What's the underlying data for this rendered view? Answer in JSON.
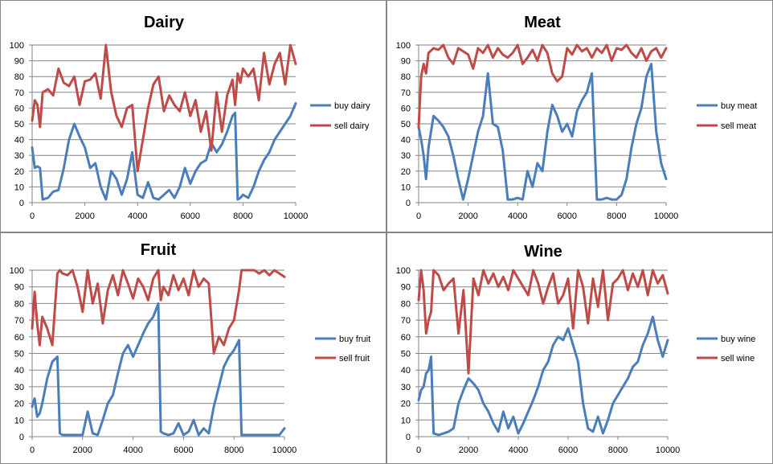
{
  "chart_data": [
    {
      "type": "line",
      "title": "Dairy",
      "xlim": [
        0,
        10000
      ],
      "ylim": [
        0,
        100
      ],
      "xticks": [
        "0",
        "2000",
        "4000",
        "6000",
        "8000",
        "10000"
      ],
      "yticks": [
        "0",
        "10",
        "20",
        "30",
        "40",
        "50",
        "60",
        "70",
        "80",
        "90",
        "100"
      ],
      "grid": true,
      "legend": "right",
      "x": [
        0,
        100,
        200,
        300,
        400,
        600,
        800,
        1000,
        1200,
        1400,
        1600,
        1800,
        2000,
        2200,
        2400,
        2600,
        2800,
        3000,
        3200,
        3400,
        3600,
        3800,
        4000,
        4200,
        4400,
        4600,
        4800,
        5000,
        5200,
        5400,
        5600,
        5800,
        6000,
        6200,
        6400,
        6600,
        6800,
        7000,
        7200,
        7400,
        7600,
        7700,
        7800,
        7900,
        8000,
        8200,
        8400,
        8600,
        8800,
        9000,
        9200,
        9400,
        9600,
        9800,
        10000
      ],
      "series": [
        {
          "name": "buy dairy",
          "color": "#4a7ebb",
          "values": [
            35,
            22,
            23,
            22,
            2,
            3,
            7,
            8,
            22,
            40,
            50,
            42,
            35,
            22,
            25,
            10,
            2,
            20,
            15,
            5,
            15,
            32,
            5,
            3,
            13,
            3,
            2,
            5,
            8,
            3,
            10,
            22,
            12,
            20,
            25,
            27,
            38,
            32,
            37,
            45,
            55,
            57,
            2,
            3,
            5,
            3,
            10,
            20,
            27,
            32,
            40,
            45,
            50,
            55,
            63
          ]
        },
        {
          "name": "sell dairy",
          "color": "#be4b48",
          "values": [
            52,
            65,
            62,
            48,
            70,
            72,
            68,
            85,
            76,
            74,
            80,
            62,
            77,
            78,
            82,
            66,
            100,
            70,
            55,
            48,
            60,
            62,
            20,
            40,
            60,
            75,
            80,
            58,
            68,
            62,
            58,
            70,
            55,
            65,
            45,
            58,
            33,
            70,
            45,
            68,
            78,
            62,
            82,
            76,
            85,
            80,
            85,
            65,
            95,
            75,
            88,
            95,
            75,
            100,
            88
          ]
        }
      ]
    },
    {
      "type": "line",
      "title": "Meat",
      "xlim": [
        0,
        10000
      ],
      "ylim": [
        0,
        100
      ],
      "xticks": [
        "0",
        "2000",
        "4000",
        "6000",
        "8000",
        "10000"
      ],
      "yticks": [
        "0",
        "10",
        "20",
        "30",
        "40",
        "50",
        "60",
        "70",
        "80",
        "90",
        "100"
      ],
      "grid": true,
      "legend": "right",
      "x": [
        0,
        100,
        200,
        300,
        400,
        600,
        800,
        1000,
        1200,
        1400,
        1600,
        1800,
        2000,
        2200,
        2400,
        2600,
        2800,
        3000,
        3200,
        3400,
        3600,
        3800,
        4000,
        4200,
        4400,
        4600,
        4800,
        5000,
        5200,
        5400,
        5600,
        5800,
        6000,
        6200,
        6400,
        6600,
        6800,
        7000,
        7200,
        7400,
        7600,
        7800,
        8000,
        8200,
        8400,
        8600,
        8800,
        9000,
        9200,
        9400,
        9600,
        9800,
        10000
      ],
      "series": [
        {
          "name": "buy meat",
          "color": "#4a7ebb",
          "values": [
            48,
            40,
            30,
            15,
            35,
            55,
            52,
            48,
            42,
            30,
            15,
            2,
            15,
            30,
            45,
            55,
            82,
            50,
            48,
            33,
            2,
            2,
            3,
            2,
            20,
            10,
            25,
            20,
            45,
            62,
            55,
            45,
            50,
            42,
            58,
            65,
            70,
            82,
            2,
            2,
            3,
            2,
            2,
            5,
            15,
            35,
            50,
            60,
            80,
            88,
            45,
            25,
            15
          ]
        },
        {
          "name": "sell meat",
          "color": "#be4b48",
          "values": [
            48,
            80,
            88,
            82,
            95,
            98,
            97,
            100,
            92,
            88,
            98,
            96,
            94,
            85,
            98,
            95,
            100,
            92,
            98,
            94,
            92,
            95,
            100,
            88,
            92,
            97,
            90,
            100,
            95,
            82,
            77,
            80,
            98,
            94,
            100,
            96,
            98,
            92,
            98,
            95,
            100,
            90,
            98,
            97,
            100,
            95,
            92,
            98,
            90,
            96,
            98,
            92,
            98
          ]
        }
      ]
    },
    {
      "type": "line",
      "title": "Fruit",
      "xlim": [
        0,
        10000
      ],
      "ylim": [
        0,
        100
      ],
      "xticks": [
        "0",
        "2000",
        "4000",
        "6000",
        "8000",
        "10000"
      ],
      "yticks": [
        "0",
        "10",
        "20",
        "30",
        "40",
        "50",
        "60",
        "70",
        "80",
        "90",
        "100"
      ],
      "grid": true,
      "legend": "right",
      "x": [
        0,
        100,
        200,
        300,
        400,
        600,
        800,
        1000,
        1100,
        1200,
        1400,
        1600,
        1800,
        2000,
        2200,
        2400,
        2600,
        2800,
        3000,
        3200,
        3400,
        3600,
        3800,
        4000,
        4200,
        4400,
        4600,
        4800,
        5000,
        5100,
        5200,
        5400,
        5600,
        5800,
        6000,
        6200,
        6400,
        6600,
        6800,
        7000,
        7200,
        7400,
        7600,
        7800,
        8000,
        8200,
        8300,
        8400,
        8600,
        8800,
        9000,
        9200,
        9400,
        9600,
        9800,
        10000
      ],
      "series": [
        {
          "name": "buy fruit",
          "color": "#4a7ebb",
          "values": [
            18,
            23,
            12,
            14,
            20,
            35,
            45,
            48,
            2,
            1,
            1,
            1,
            1,
            1,
            15,
            2,
            1,
            10,
            20,
            25,
            38,
            50,
            55,
            48,
            55,
            62,
            68,
            72,
            80,
            3,
            2,
            1,
            2,
            8,
            1,
            3,
            10,
            1,
            5,
            2,
            18,
            30,
            42,
            48,
            52,
            58,
            1,
            1,
            1,
            1,
            1,
            1,
            1,
            1,
            1,
            5
          ]
        },
        {
          "name": "sell fruit",
          "color": "#be4b48",
          "values": [
            65,
            87,
            68,
            55,
            72,
            65,
            55,
            98,
            100,
            98,
            97,
            100,
            90,
            75,
            100,
            80,
            92,
            68,
            88,
            97,
            85,
            100,
            92,
            83,
            95,
            90,
            82,
            95,
            100,
            82,
            90,
            85,
            97,
            88,
            95,
            85,
            100,
            90,
            95,
            92,
            50,
            60,
            55,
            65,
            70,
            88,
            100,
            100,
            100,
            100,
            98,
            100,
            97,
            100,
            98,
            96
          ]
        }
      ]
    },
    {
      "type": "line",
      "title": "Wine",
      "xlim": [
        0,
        10000
      ],
      "ylim": [
        0,
        100
      ],
      "xticks": [
        "0",
        "2000",
        "4000",
        "6000",
        "8000",
        "10000"
      ],
      "yticks": [
        "0",
        "10",
        "20",
        "30",
        "40",
        "50",
        "60",
        "70",
        "80",
        "90",
        "100"
      ],
      "grid": true,
      "legend": "right",
      "x": [
        0,
        100,
        200,
        300,
        400,
        500,
        600,
        800,
        1000,
        1200,
        1400,
        1600,
        1800,
        2000,
        2200,
        2400,
        2600,
        2800,
        3000,
        3200,
        3400,
        3600,
        3800,
        4000,
        4200,
        4400,
        4600,
        4800,
        5000,
        5200,
        5400,
        5600,
        5800,
        6000,
        6200,
        6400,
        6600,
        6800,
        7000,
        7200,
        7400,
        7600,
        7800,
        8000,
        8200,
        8400,
        8600,
        8800,
        9000,
        9200,
        9400,
        9600,
        9800,
        10000
      ],
      "series": [
        {
          "name": "buy wine",
          "color": "#4a7ebb",
          "values": [
            22,
            28,
            30,
            38,
            40,
            48,
            2,
            1,
            2,
            3,
            5,
            20,
            28,
            35,
            32,
            28,
            20,
            15,
            8,
            3,
            15,
            5,
            12,
            2,
            8,
            15,
            22,
            30,
            40,
            45,
            55,
            60,
            58,
            65,
            55,
            45,
            20,
            5,
            3,
            12,
            2,
            10,
            20,
            25,
            30,
            35,
            42,
            45,
            55,
            62,
            72,
            58,
            48,
            58
          ]
        },
        {
          "name": "sell wine",
          "color": "#be4b48",
          "values": [
            82,
            100,
            88,
            62,
            70,
            75,
            100,
            97,
            88,
            92,
            95,
            62,
            88,
            38,
            95,
            85,
            100,
            92,
            98,
            90,
            96,
            88,
            100,
            95,
            90,
            85,
            100,
            92,
            80,
            90,
            98,
            80,
            85,
            95,
            65,
            100,
            90,
            68,
            95,
            78,
            100,
            70,
            92,
            95,
            100,
            88,
            98,
            90,
            100,
            85,
            100,
            92,
            97,
            86
          ]
        }
      ]
    }
  ]
}
